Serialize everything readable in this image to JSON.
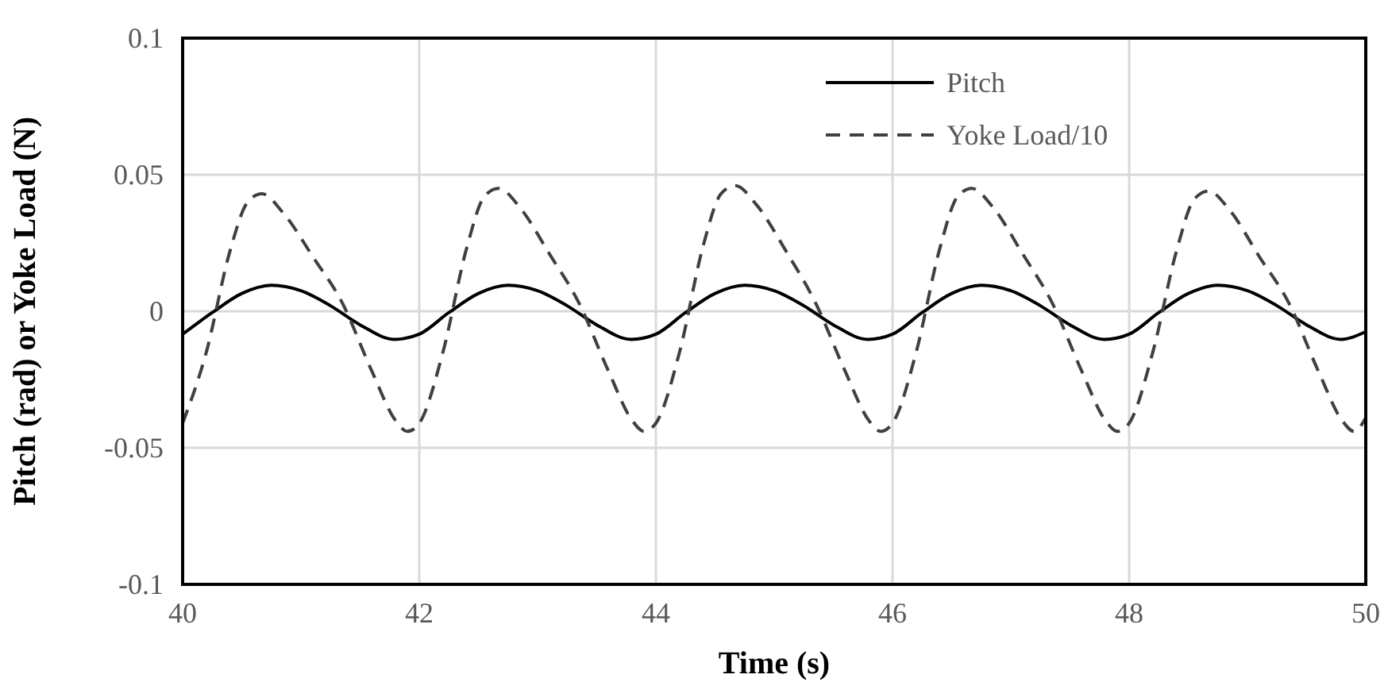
{
  "chart_data": {
    "type": "line",
    "xlabel": "Time (s)",
    "ylabel": "Pitch (rad) or Yoke Load (N)",
    "xlim": [
      40,
      50
    ],
    "xticks": [
      40,
      42,
      44,
      46,
      48,
      50
    ],
    "ylim": [
      -0.1,
      0.1
    ],
    "yticks": [
      -0.1,
      -0.05,
      0,
      0.05,
      0.1
    ],
    "grid": true,
    "legend": "top right",
    "marker": "none",
    "series": [
      {
        "name": "Pitch",
        "color": "#000000",
        "line_style": "solid",
        "x": [
          40,
          40.25,
          40.5,
          40.75,
          41,
          41.25,
          41.5,
          41.79,
          42,
          42.25,
          42.5,
          42.75,
          43,
          43.25,
          43.5,
          43.79,
          44,
          44.25,
          44.5,
          44.75,
          45,
          45.25,
          45.5,
          45.79,
          46,
          46.25,
          46.5,
          46.75,
          47,
          47.25,
          47.5,
          47.79,
          48,
          48.25,
          48.5,
          48.75,
          49,
          49.25,
          49.5,
          49.79,
          50
        ],
        "values": [
          -0.0084,
          -0.0005,
          0.0065,
          0.0095,
          0.0075,
          0.002,
          -0.005,
          -0.0103,
          -0.0084,
          -0.0005,
          0.0065,
          0.0095,
          0.0075,
          0.002,
          -0.005,
          -0.0103,
          -0.0084,
          -0.0005,
          0.0065,
          0.0095,
          0.0075,
          0.002,
          -0.005,
          -0.0103,
          -0.0084,
          -0.0005,
          0.0065,
          0.0095,
          0.0075,
          0.002,
          -0.005,
          -0.0103,
          -0.0084,
          -0.0005,
          0.0065,
          0.0095,
          0.0075,
          0.002,
          -0.005,
          -0.0103,
          -0.0075
        ]
      },
      {
        "name": "Yoke Load/10",
        "color": "#404040",
        "line_style": "dashed",
        "x": [
          40,
          40.2,
          40.4,
          40.55,
          40.67,
          40.85,
          41.1,
          41.35,
          41.6,
          41.8,
          41.9,
          42,
          42.2,
          42.4,
          42.55,
          42.67,
          42.85,
          43.1,
          43.35,
          43.6,
          43.8,
          43.9,
          44,
          44.2,
          44.4,
          44.55,
          44.67,
          44.85,
          45.1,
          45.35,
          45.6,
          45.8,
          45.9,
          46,
          46.2,
          46.4,
          46.55,
          46.67,
          46.85,
          47.1,
          47.35,
          47.6,
          47.8,
          47.9,
          48,
          48.2,
          48.4,
          48.55,
          48.67,
          48.85,
          49.1,
          49.35,
          49.6,
          49.8,
          49.9,
          50
        ],
        "values": [
          -0.041,
          -0.015,
          0.022,
          0.04,
          0.043,
          0.036,
          0.02,
          0.003,
          -0.022,
          -0.04,
          -0.044,
          -0.041,
          -0.015,
          0.023,
          0.042,
          0.045,
          0.038,
          0.021,
          0.003,
          -0.022,
          -0.04,
          -0.044,
          -0.041,
          -0.015,
          0.024,
          0.043,
          0.046,
          0.039,
          0.022,
          0.003,
          -0.022,
          -0.04,
          -0.044,
          -0.041,
          -0.015,
          0.023,
          0.042,
          0.045,
          0.038,
          0.021,
          0.003,
          -0.022,
          -0.04,
          -0.044,
          -0.041,
          -0.015,
          0.022,
          0.041,
          0.044,
          0.037,
          0.02,
          0.003,
          -0.022,
          -0.04,
          -0.044,
          -0.039
        ]
      }
    ]
  }
}
